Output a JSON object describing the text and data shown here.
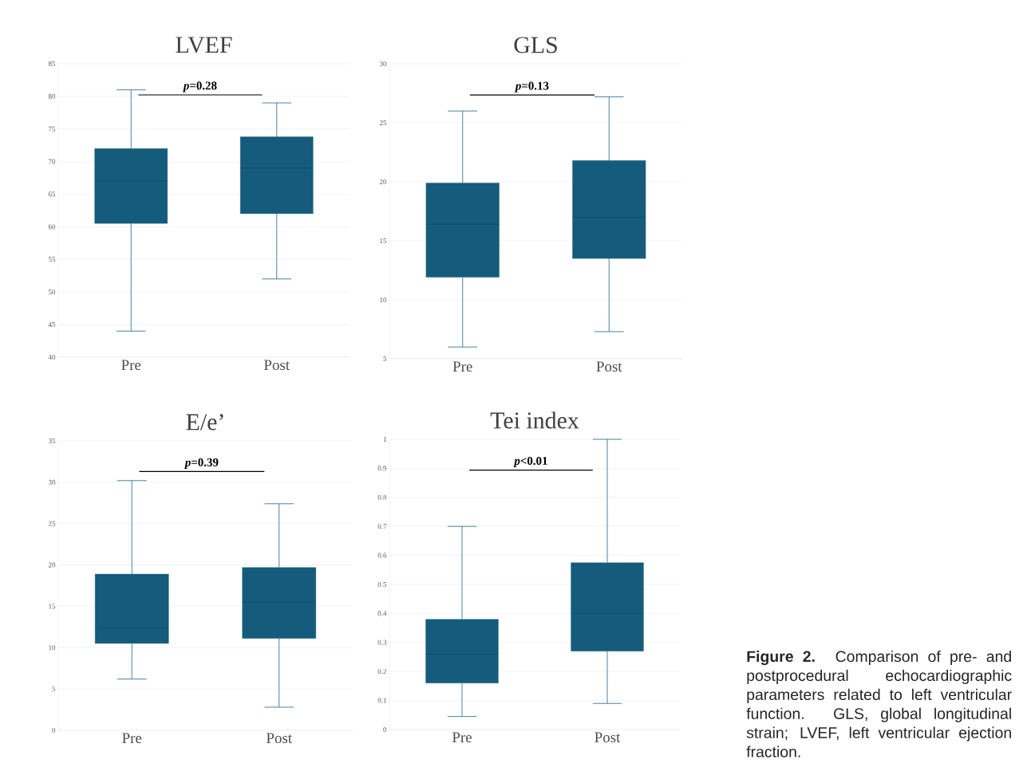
{
  "chart_data": [
    {
      "type": "box",
      "title": "LVEF",
      "categories": [
        "Pre",
        "Post"
      ],
      "color": "#155b7b",
      "grid": "y",
      "ylim": [
        40,
        85
      ],
      "yticks": [
        40,
        45,
        50,
        55,
        60,
        65,
        70,
        75,
        80,
        85
      ],
      "annotations": [
        "*p*=0.28"
      ],
      "boxes": [
        {
          "low": 44,
          "q1": 60.5,
          "median": 67,
          "q3": 72,
          "high": 81
        },
        {
          "low": 52,
          "q1": 62,
          "median": 69,
          "q3": 73.8,
          "high": 79
        }
      ]
    },
    {
      "type": "box",
      "title": "GLS",
      "categories": [
        "Pre",
        "Post"
      ],
      "color": "#155b7b",
      "grid": "y",
      "ylim": [
        5,
        30
      ],
      "yticks": [
        5,
        10,
        15,
        20,
        25,
        30
      ],
      "annotations": [
        "*p*=0.13"
      ],
      "boxes": [
        {
          "low": 6,
          "q1": 11.9,
          "median": 16.4,
          "q3": 19.9,
          "high": 26
        },
        {
          "low": 7.3,
          "q1": 13.5,
          "median": 17,
          "q3": 21.8,
          "high": 27.2
        }
      ]
    },
    {
      "type": "box",
      "title": "E/e’",
      "categories": [
        "Pre",
        "Post"
      ],
      "color": "#155b7b",
      "grid": "y",
      "ylim": [
        0,
        35
      ],
      "yticks": [
        0,
        5,
        10,
        15,
        20,
        25,
        30,
        35
      ],
      "annotations": [
        "*p*=0.39"
      ],
      "boxes": [
        {
          "low": 6.2,
          "q1": 10.5,
          "median": 12.4,
          "q3": 18.9,
          "high": 30.2
        },
        {
          "low": 2.8,
          "q1": 11.1,
          "median": 15.5,
          "q3": 19.7,
          "high": 27.4
        }
      ]
    },
    {
      "type": "box",
      "title": "Tei index",
      "categories": [
        "Pre",
        "Post"
      ],
      "color": "#155b7b",
      "grid": "y",
      "ylim": [
        0,
        1
      ],
      "yticks": [
        0,
        0.1,
        0.2,
        0.3,
        0.4,
        0.5,
        0.6,
        0.7,
        0.8,
        0.9,
        1
      ],
      "annotations": [
        "*p*<0.01",
        "**Figure 2.**  Comparison of pre- and postprocedural echocardiographic parameters related to left ventricular function. GLS, global longitudinal strain; LVEF, left ventricular ejection fraction."
      ],
      "boxes": [
        {
          "low": 0.045,
          "q1": 0.16,
          "median": 0.26,
          "q3": 0.38,
          "high": 0.7
        },
        {
          "low": 0.09,
          "q1": 0.27,
          "median": 0.4,
          "q3": 0.575,
          "high": 1.0
        }
      ]
    }
  ]
}
